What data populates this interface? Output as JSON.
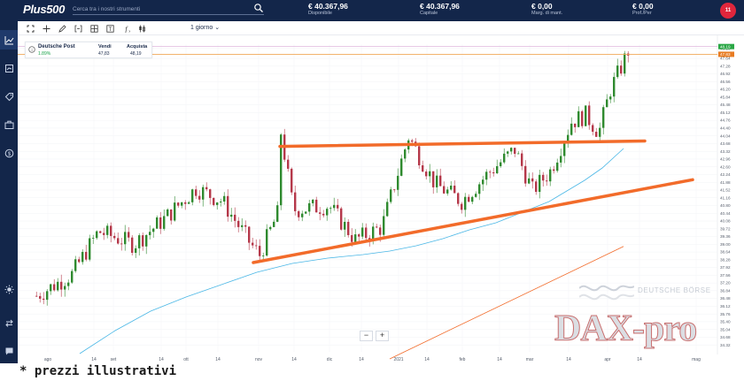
{
  "header": {
    "logo": "Plus500",
    "search_placeholder": "Cerca tra i nostri strumenti",
    "stats": [
      {
        "value": "€ 40.367,96",
        "label": "Disponibile"
      },
      {
        "value": "€ 40.367,96",
        "label": "Capitale"
      },
      {
        "value": "€ 0,00",
        "label": "Marg. di mant."
      },
      {
        "value": "€ 0,00",
        "label": "Prof./Per"
      }
    ],
    "avatar": "11",
    "colors": {
      "bar": "#13264a",
      "avatar": "#e0263c"
    }
  },
  "sidebar": {
    "items": [
      {
        "icon": "chart-icon",
        "active": true
      },
      {
        "icon": "chart-ticket-icon",
        "active": false
      },
      {
        "icon": "tag-icon",
        "active": false
      },
      {
        "icon": "briefcase-icon",
        "active": false
      },
      {
        "icon": "coin-icon",
        "active": false
      },
      {
        "icon": "brightness-icon",
        "active": false
      },
      {
        "icon": "swap-icon",
        "active": false
      },
      {
        "icon": "chat-icon",
        "active": false
      }
    ]
  },
  "toolbar": {
    "icons": [
      "crosshair-icon",
      "move-icon",
      "pencil-icon",
      "bracket-icon",
      "grid-icon",
      "text-icon",
      "indicator-icon",
      "candles-icon"
    ],
    "period": "1 giorno"
  },
  "instrument": {
    "name": "Deutsche Post",
    "change": "1.89%",
    "sell_label": "Vendi",
    "sell_price": "47,83",
    "buy_label": "Acquista",
    "buy_price": "48,19"
  },
  "chart_data": {
    "type": "candlestick",
    "y_axis_labels": [
      "48.10",
      "47.64",
      "47.28",
      "46.92",
      "46.56",
      "46.20",
      "45.84",
      "45.48",
      "45.12",
      "44.76",
      "44.40",
      "44.04",
      "43.68",
      "43.32",
      "42.96",
      "42.60",
      "42.24",
      "41.88",
      "41.52",
      "41.16",
      "40.80",
      "40.44",
      "40.08",
      "39.72",
      "39.36",
      "39.00",
      "38.64",
      "38.28",
      "37.92",
      "37.56",
      "37.20",
      "36.84",
      "36.48",
      "36.12",
      "35.76",
      "35.40",
      "35.04",
      "34.68",
      "34.32"
    ],
    "ylim": [
      34.0,
      48.3
    ],
    "price_tags": [
      {
        "value": "48.19",
        "color": "#2aa745"
      },
      {
        "value": "47.83",
        "color": "#e87b22"
      }
    ],
    "x_axis_labels": [
      "ago",
      "14",
      "set",
      "14",
      "ott",
      "14",
      "nov",
      "14",
      "dic",
      "14",
      "2021",
      "14",
      "feb",
      "14",
      "mar",
      "14",
      "apr",
      "14",
      "mag"
    ],
    "colors": {
      "up": "#2f8a2f",
      "down": "#b5384a",
      "ma": "#4ab7e6",
      "trendline": "#f26b2a",
      "thin_line": "#f26b2a"
    }
  },
  "zoom": {
    "minus": "−",
    "plus": "+"
  },
  "watermark": {
    "brand": "DEUTSCHE BÖRSE",
    "logo": "DAX-pro"
  },
  "footer": {
    "disclaimer": "* prezzi illustrativi"
  }
}
